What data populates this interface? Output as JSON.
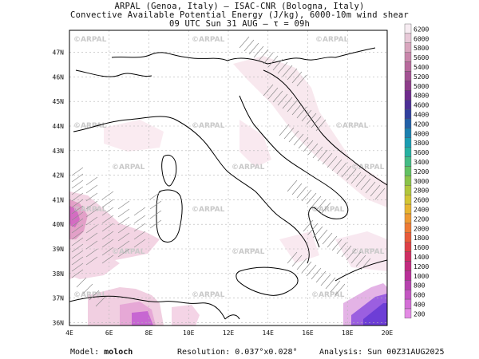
{
  "header": {
    "line1": "ARPAL (Genoa, Italy)  –  ISAC-CNR (Bologna, Italy)",
    "line2": "Convective Available Potential Energy (J/kg), 6000-10m wind shear",
    "line3": "09 UTC Sun 31 AUG  –  τ = 09h"
  },
  "map": {
    "lat_labels": [
      "47N",
      "46N",
      "45N",
      "44N",
      "43N",
      "42N",
      "41N",
      "40N",
      "39N",
      "38N",
      "37N",
      "36N"
    ],
    "lon_labels": [
      "4E",
      "6E",
      "8E",
      "10E",
      "12E",
      "14E",
      "16E",
      "18E",
      "20E"
    ],
    "watermark": "©ARPAL"
  },
  "colorbar": {
    "labels": [
      "6200",
      "6000",
      "5800",
      "5600",
      "5400",
      "5200",
      "5000",
      "4800",
      "4600",
      "4400",
      "4200",
      "4000",
      "3800",
      "3600",
      "3400",
      "3200",
      "3000",
      "2800",
      "2600",
      "2400",
      "2200",
      "2000",
      "1800",
      "1600",
      "1400",
      "1200",
      "1000",
      "800",
      "600",
      "400",
      "200"
    ],
    "colors": [
      "#f7ecf2",
      "#e8c9d8",
      "#d9a6be",
      "#c986ab",
      "#b86a9d",
      "#a35293",
      "#8e3d8a",
      "#6f2b8d",
      "#4c2f96",
      "#30409e",
      "#2261a8",
      "#1b80b0",
      "#1a9db2",
      "#26b1a2",
      "#44bb86",
      "#62c163",
      "#8ac34a",
      "#b1c63c",
      "#d2c534",
      "#e7b531",
      "#ee9a33",
      "#ee7a35",
      "#e85a3a",
      "#de3f46",
      "#cf2e62",
      "#c22a7e",
      "#b92f98",
      "#b642ae",
      "#c356c2",
      "#d36ed6",
      "#e38ae4"
    ]
  },
  "footer": {
    "model_label": "Model:",
    "model_value": "moloch",
    "resolution_label": "Resolution:",
    "resolution_value": "0.037°x0.028°",
    "analysis_label": "Analysis:",
    "analysis_value": "Sun 00Z31AUG2025"
  }
}
